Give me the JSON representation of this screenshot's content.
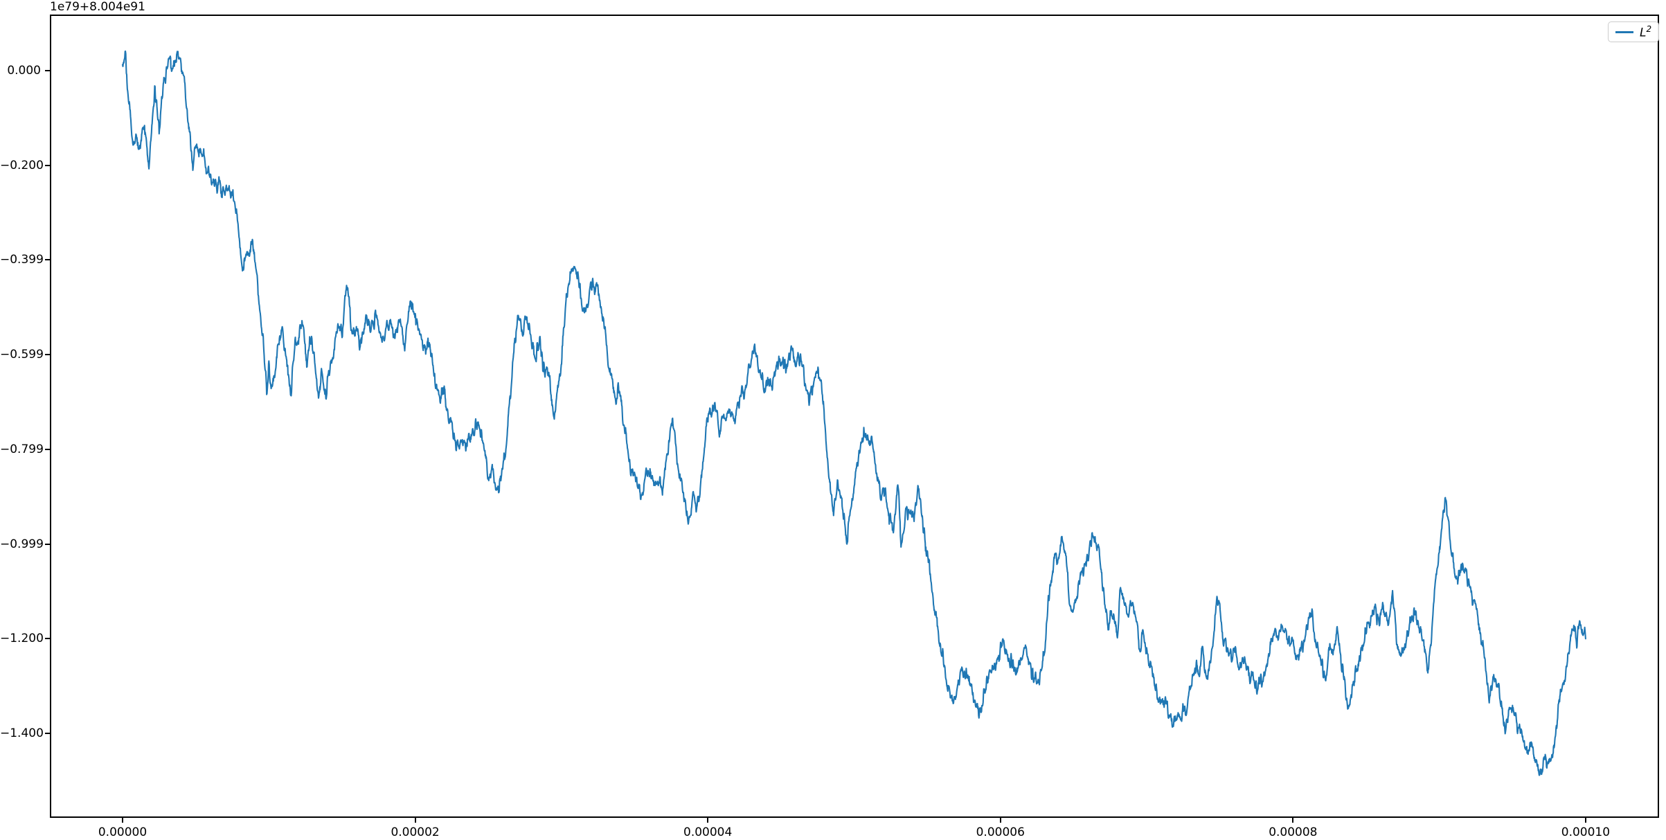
{
  "figure": {
    "offset_text": "1e79+8.004e91",
    "background": "#ffffff",
    "spine_color": "#000000"
  },
  "legend": {
    "label_base": "L",
    "label_sup": "2",
    "line_color": "#1f77b4",
    "position": "upper right"
  },
  "chart_data": {
    "type": "line",
    "title": "",
    "xlabel": "",
    "ylabel": "",
    "grid": false,
    "legend_position": "upper right",
    "y_offset_text": "1e79+8.004e91",
    "x_unit_scale": "1e-5",
    "xlim": [
      -0.497,
      10.502
    ],
    "ylim": [
      -1.5785,
      0.1185
    ],
    "x_ticks": {
      "values": [
        0,
        2,
        4,
        6,
        8,
        10
      ],
      "labels": [
        "0.00000",
        "0.00002",
        "0.00004",
        "0.00006",
        "0.00008",
        "0.00010"
      ]
    },
    "y_ticks": {
      "values": [
        0,
        -0.2,
        -0.4,
        -0.6,
        -0.8,
        -1.0,
        -1.2,
        -1.4
      ],
      "labels": [
        "0.000",
        "−0.200",
        "−0.399",
        "−0.599",
        "−0.799",
        "−0.999",
        "−1.200",
        "−1.400"
      ]
    },
    "series": [
      {
        "name": "L^2",
        "color": "#1f77b4",
        "linewidth": 2.1,
        "anchors_x": [
          0.0,
          0.02,
          0.04,
          0.07,
          0.09,
          0.11,
          0.13,
          0.15,
          0.18,
          0.2,
          0.22,
          0.25,
          0.28,
          0.3,
          0.32,
          0.34,
          0.36,
          0.38,
          0.4,
          0.42,
          0.44,
          0.46,
          0.48,
          0.51,
          0.54,
          0.57,
          0.6,
          0.63,
          0.66,
          0.69,
          0.72,
          0.76,
          0.79,
          0.82,
          0.85,
          0.89,
          0.92,
          0.96,
          0.985,
          1.0,
          1.02,
          1.05,
          1.09,
          1.12,
          1.15,
          1.18,
          1.21,
          1.24,
          1.26,
          1.28,
          1.31,
          1.34,
          1.36,
          1.39,
          1.42,
          1.45,
          1.47,
          1.5,
          1.53,
          1.56,
          1.6,
          1.62,
          1.66,
          1.7,
          1.73,
          1.76,
          1.78,
          1.81,
          1.83,
          1.85,
          1.88,
          1.9,
          1.93,
          1.97,
          2.0,
          2.03,
          2.07,
          2.1,
          2.13,
          2.17,
          2.19,
          2.22,
          2.25,
          2.28,
          2.3,
          2.33,
          2.36,
          2.4,
          2.43,
          2.47,
          2.5,
          2.53,
          2.57,
          2.6,
          2.63,
          2.66,
          2.7,
          2.73,
          2.76,
          2.79,
          2.82,
          2.85,
          2.88,
          2.91,
          2.95,
          2.99,
          3.03,
          3.06,
          3.09,
          3.12,
          3.15,
          3.18,
          3.21,
          3.24,
          3.27,
          3.3,
          3.33,
          3.36,
          3.39,
          3.42,
          3.45,
          3.48,
          3.51,
          3.54,
          3.57,
          3.6,
          3.63,
          3.66,
          3.69,
          3.72,
          3.76,
          3.79,
          3.82,
          3.84,
          3.86,
          3.88,
          3.9,
          3.92,
          3.95,
          3.99,
          4.03,
          4.06,
          4.08,
          4.11,
          4.15,
          4.18,
          4.22,
          4.26,
          4.29,
          4.32,
          4.35,
          4.38,
          4.41,
          4.44,
          4.47,
          4.5,
          4.53,
          4.57,
          4.6,
          4.63,
          4.66,
          4.69,
          4.72,
          4.75,
          4.78,
          4.81,
          4.84,
          4.86,
          4.89,
          4.92,
          4.95,
          4.98,
          5.01,
          5.04,
          5.07,
          5.09,
          5.12,
          5.16,
          5.18,
          5.21,
          5.24,
          5.27,
          5.3,
          5.32,
          5.35,
          5.38,
          5.41,
          5.44,
          5.47,
          5.5,
          5.54,
          5.58,
          5.62,
          5.65,
          5.68,
          5.71,
          5.74,
          5.76,
          5.79,
          5.83,
          5.86,
          5.89,
          5.92,
          5.95,
          5.98,
          6.02,
          6.05,
          6.1,
          6.13,
          6.17,
          6.2,
          6.26,
          6.3,
          6.33,
          6.36,
          6.39,
          6.42,
          6.45,
          6.49,
          6.52,
          6.55,
          6.58,
          6.61,
          6.64,
          6.67,
          6.7,
          6.74,
          6.78,
          6.8,
          6.82,
          6.85,
          6.87,
          6.91,
          6.96,
          6.98,
          7.02,
          7.05,
          7.08,
          7.12,
          7.15,
          7.18,
          7.22,
          7.26,
          7.29,
          7.33,
          7.36,
          7.38,
          7.41,
          7.44,
          7.48,
          7.5,
          7.52,
          7.56,
          7.59,
          7.63,
          7.67,
          7.71,
          7.75,
          7.79,
          7.82,
          7.86,
          7.89,
          7.92,
          7.95,
          7.99,
          8.03,
          8.06,
          8.09,
          8.13,
          8.16,
          8.19,
          8.21,
          8.24,
          8.27,
          8.3,
          8.33,
          8.37,
          8.39,
          8.42,
          8.45,
          8.48,
          8.52,
          8.56,
          8.59,
          8.62,
          8.65,
          8.68,
          8.71,
          8.74,
          8.77,
          8.8,
          8.84,
          8.87,
          8.9,
          8.92,
          8.94,
          8.96,
          8.98,
          9.0,
          9.02,
          9.04,
          9.06,
          9.08,
          9.1,
          9.12,
          9.15,
          9.17,
          9.2,
          9.24,
          9.27,
          9.3,
          9.34,
          9.37,
          9.4,
          9.43,
          9.45,
          9.48,
          9.5,
          9.53,
          9.57,
          9.6,
          9.63,
          9.67,
          9.7,
          9.72,
          9.74,
          9.77,
          9.81,
          9.84,
          9.87,
          9.9,
          9.92,
          9.94,
          9.96,
          9.98,
          10.0
        ],
        "anchors_y": [
          0.015,
          0.035,
          -0.05,
          -0.155,
          -0.13,
          -0.165,
          -0.12,
          -0.115,
          -0.21,
          -0.12,
          -0.05,
          -0.115,
          -0.02,
          0.0,
          0.025,
          0.005,
          0.02,
          0.04,
          0.015,
          -0.02,
          -0.1,
          -0.13,
          -0.19,
          -0.15,
          -0.18,
          -0.2,
          -0.22,
          -0.25,
          -0.235,
          -0.27,
          -0.25,
          -0.28,
          -0.34,
          -0.42,
          -0.4,
          -0.36,
          -0.43,
          -0.55,
          -0.672,
          -0.61,
          -0.67,
          -0.6,
          -0.53,
          -0.62,
          -0.69,
          -0.58,
          -0.555,
          -0.555,
          -0.615,
          -0.55,
          -0.61,
          -0.68,
          -0.62,
          -0.7,
          -0.62,
          -0.58,
          -0.525,
          -0.55,
          -0.46,
          -0.54,
          -0.56,
          -0.59,
          -0.53,
          -0.55,
          -0.5,
          -0.55,
          -0.585,
          -0.54,
          -0.51,
          -0.58,
          -0.54,
          -0.52,
          -0.57,
          -0.5,
          -0.54,
          -0.56,
          -0.6,
          -0.565,
          -0.665,
          -0.7,
          -0.67,
          -0.72,
          -0.75,
          -0.79,
          -0.77,
          -0.81,
          -0.79,
          -0.77,
          -0.75,
          -0.8,
          -0.84,
          -0.86,
          -0.89,
          -0.83,
          -0.75,
          -0.65,
          -0.505,
          -0.55,
          -0.52,
          -0.555,
          -0.6,
          -0.565,
          -0.62,
          -0.66,
          -0.72,
          -0.64,
          -0.5,
          -0.43,
          -0.4,
          -0.46,
          -0.52,
          -0.47,
          -0.44,
          -0.47,
          -0.49,
          -0.56,
          -0.63,
          -0.7,
          -0.67,
          -0.74,
          -0.8,
          -0.84,
          -0.86,
          -0.89,
          -0.86,
          -0.83,
          -0.87,
          -0.856,
          -0.88,
          -0.8,
          -0.74,
          -0.82,
          -0.87,
          -0.894,
          -0.938,
          -0.944,
          -0.9,
          -0.916,
          -0.87,
          -0.758,
          -0.71,
          -0.692,
          -0.772,
          -0.74,
          -0.695,
          -0.743,
          -0.7,
          -0.65,
          -0.61,
          -0.58,
          -0.63,
          -0.674,
          -0.64,
          -0.66,
          -0.62,
          -0.604,
          -0.62,
          -0.597,
          -0.625,
          -0.612,
          -0.65,
          -0.71,
          -0.67,
          -0.64,
          -0.68,
          -0.8,
          -0.87,
          -0.93,
          -0.88,
          -0.93,
          -0.98,
          -0.92,
          -0.85,
          -0.79,
          -0.76,
          -0.755,
          -0.79,
          -0.84,
          -0.91,
          -0.88,
          -0.95,
          -0.96,
          -0.87,
          -0.99,
          -0.95,
          -0.92,
          -0.95,
          -0.88,
          -0.96,
          -1.01,
          -1.1,
          -1.18,
          -1.26,
          -1.31,
          -1.33,
          -1.3,
          -1.275,
          -1.27,
          -1.3,
          -1.33,
          -1.35,
          -1.32,
          -1.29,
          -1.26,
          -1.24,
          -1.19,
          -1.24,
          -1.28,
          -1.25,
          -1.23,
          -1.27,
          -1.29,
          -1.22,
          -1.12,
          -1.05,
          -1.03,
          -0.975,
          -1.05,
          -1.148,
          -1.11,
          -1.07,
          -1.03,
          -1.01,
          -0.987,
          -1.0,
          -1.09,
          -1.177,
          -1.14,
          -1.186,
          -1.1,
          -1.13,
          -1.15,
          -1.135,
          -1.21,
          -1.19,
          -1.245,
          -1.28,
          -1.32,
          -1.33,
          -1.343,
          -1.37,
          -1.38,
          -1.36,
          -1.33,
          -1.25,
          -1.28,
          -1.23,
          -1.28,
          -1.24,
          -1.13,
          -1.128,
          -1.19,
          -1.22,
          -1.23,
          -1.26,
          -1.24,
          -1.28,
          -1.31,
          -1.29,
          -1.26,
          -1.22,
          -1.19,
          -1.16,
          -1.19,
          -1.22,
          -1.26,
          -1.22,
          -1.18,
          -1.15,
          -1.2,
          -1.25,
          -1.28,
          -1.25,
          -1.22,
          -1.18,
          -1.25,
          -1.32,
          -1.33,
          -1.29,
          -1.26,
          -1.22,
          -1.17,
          -1.12,
          -1.17,
          -1.12,
          -1.16,
          -1.12,
          -1.19,
          -1.24,
          -1.22,
          -1.18,
          -1.15,
          -1.19,
          -1.23,
          -1.26,
          -1.21,
          -1.13,
          -1.05,
          -1.0,
          -0.95,
          -0.92,
          -0.97,
          -1.01,
          -1.05,
          -1.07,
          -1.04,
          -1.045,
          -1.08,
          -1.12,
          -1.16,
          -1.22,
          -1.31,
          -1.27,
          -1.3,
          -1.33,
          -1.38,
          -1.35,
          -1.33,
          -1.38,
          -1.42,
          -1.44,
          -1.43,
          -1.46,
          -1.485,
          -1.46,
          -1.47,
          -1.44,
          -1.36,
          -1.31,
          -1.27,
          -1.2,
          -1.17,
          -1.22,
          -1.15,
          -1.17,
          -1.19
        ]
      }
    ],
    "render_hints": {
      "samples": 4600,
      "seed": 12345,
      "clamp": [
        -1.5,
        0.041
      ],
      "noise_octaves": [
        {
          "freq": 150,
          "amp": 0.013
        },
        {
          "freq": 40,
          "amp": 0.016
        },
        {
          "freq": 420,
          "amp": 0.007
        }
      ]
    }
  }
}
